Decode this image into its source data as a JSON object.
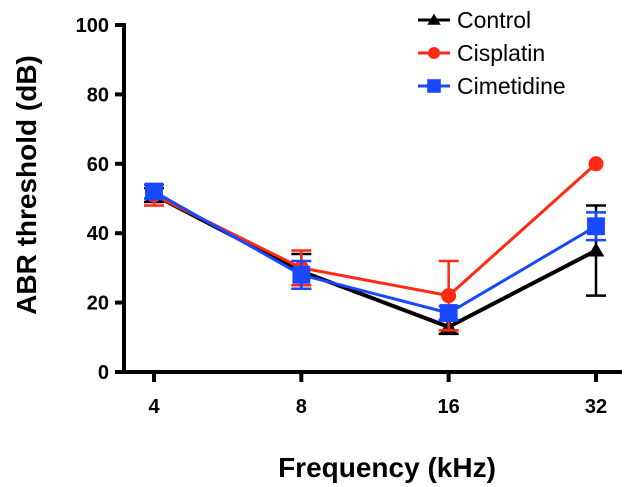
{
  "chart_data": {
    "type": "line",
    "xlabel": "Frequency (kHz)",
    "ylabel": "ABR threshold (dB)",
    "x": [
      4,
      8,
      16,
      32
    ],
    "x_tick_labels": [
      "4",
      "8",
      "16",
      "32"
    ],
    "x_scale": "log2",
    "ylim": [
      0,
      100
    ],
    "y_ticks": [
      0,
      20,
      40,
      60,
      80,
      100
    ],
    "y_tick_labels": [
      "0",
      "20",
      "40",
      "60",
      "80",
      "100"
    ],
    "grid": false,
    "legend_position": "top-right",
    "series": [
      {
        "name": "Control",
        "color": "#000000",
        "marker": "triangle",
        "values": [
          51,
          29,
          13,
          35
        ],
        "error": [
          2,
          5,
          2,
          13
        ]
      },
      {
        "name": "Cisplatin",
        "color": "#ff2a14",
        "marker": "circle",
        "values": [
          51,
          30,
          22,
          60
        ],
        "error": [
          3,
          5,
          10,
          0
        ]
      },
      {
        "name": "Cimetidine",
        "color": "#1848ff",
        "marker": "square",
        "values": [
          52,
          28,
          17,
          42
        ],
        "error": [
          2,
          4,
          2,
          4
        ]
      }
    ]
  }
}
